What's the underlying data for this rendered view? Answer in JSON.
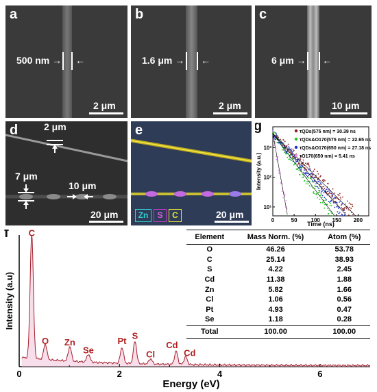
{
  "panels": {
    "a": {
      "label": "a",
      "annotation": "500 nm",
      "scale": "2 μm"
    },
    "b": {
      "label": "b",
      "annotation": "1.6 μm",
      "scale": "2 μm"
    },
    "c": {
      "label": "c",
      "annotation": "6 μm",
      "scale": "10 μm"
    },
    "d": {
      "label": "d",
      "ann_top": "2 μm",
      "ann_left": "7 μm",
      "ann_mid": "10 μm",
      "scale": "20 μm"
    },
    "e": {
      "label": "e",
      "legend": [
        "Zn",
        "S",
        "C"
      ],
      "legend_colors": [
        "#2fd3d3",
        "#c43ad0",
        "#e8e83a"
      ],
      "scale": "20 μm"
    },
    "g": {
      "label": "g"
    },
    "f": {
      "label": "f"
    }
  },
  "chart_data": [
    {
      "type": "scatter",
      "panel": "g",
      "xlabel": "Time (ns)",
      "ylabel": "Intensity (a.u.)",
      "xlim": [
        0,
        225
      ],
      "ylim": [
        5,
        5000
      ],
      "yscale": "log",
      "xticks": [
        "0",
        "50",
        "100",
        "150",
        "200"
      ],
      "yticks": [
        "10¹",
        "10²",
        "10³"
      ],
      "series": [
        {
          "name": "τQDs(575 nm) = 30.39 ns",
          "color": "#8b1a1a",
          "tau": 30.39
        },
        {
          "name": "τQDs&O170(575 nm) = 22.65 ns",
          "color": "#22c41f",
          "tau": 22.65
        },
        {
          "name": "τQDs&O170(650 nm) = 27.18 ns",
          "color": "#1a2fc4",
          "tau": 27.18
        },
        {
          "name": "τO170(650 nm) = 5.41 ns",
          "color": "#e48ce4",
          "tau": 5.41
        }
      ]
    },
    {
      "type": "line",
      "panel": "f",
      "xlabel": "Energy (eV)",
      "ylabel": "Intensity (a.u)",
      "xlim": [
        0,
        7
      ],
      "xticks": [
        "0",
        "2",
        "4",
        "6"
      ],
      "peaks": [
        {
          "label": "C",
          "energy": 0.25,
          "height": 0.95
        },
        {
          "label": "O",
          "energy": 0.52,
          "height": 0.12
        },
        {
          "label": "Zn",
          "energy": 1.01,
          "height": 0.11
        },
        {
          "label": "Se",
          "energy": 1.38,
          "height": 0.06
        },
        {
          "label": "Pt",
          "energy": 2.05,
          "height": 0.12
        },
        {
          "label": "S",
          "energy": 2.31,
          "height": 0.17
        },
        {
          "label": "Cl",
          "energy": 2.62,
          "height": 0.04
        },
        {
          "label": "Cd",
          "energy": 3.13,
          "height": 0.1
        },
        {
          "label": "Cd",
          "energy": 3.32,
          "height": 0.06
        }
      ],
      "peak_label_color": "#b02020"
    }
  ],
  "table": {
    "headers": [
      "Element",
      "Mass Norm. (%)",
      "Atom (%)"
    ],
    "rows": [
      [
        "O",
        "46.26",
        "53.78"
      ],
      [
        "C",
        "25.14",
        "38.93"
      ],
      [
        "S",
        "4.22",
        "2.45"
      ],
      [
        "Cd",
        "11.38",
        "1.88"
      ],
      [
        "Zn",
        "5.82",
        "1.66"
      ],
      [
        "Cl",
        "1.06",
        "0.56"
      ],
      [
        "Pt",
        "4.93",
        "0.47"
      ],
      [
        "Se",
        "1.18",
        "0.28"
      ]
    ],
    "total": [
      "Total",
      "100.00",
      "100.00"
    ]
  }
}
